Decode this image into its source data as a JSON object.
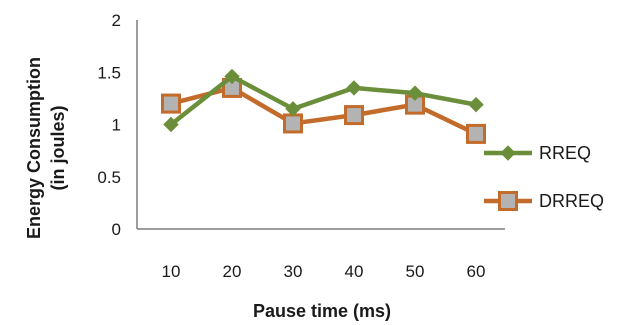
{
  "chart_data": {
    "type": "line",
    "xlabel": "Pause time (ms)",
    "ylabel": [
      "Energy Consumption",
      "(in joules)"
    ],
    "x": [
      10,
      20,
      30,
      40,
      50,
      60
    ],
    "xticks": [
      "10",
      "20",
      "30",
      "40",
      "50",
      "60"
    ],
    "yticks": [
      "0",
      "0.5",
      "1",
      "1.5",
      "2"
    ],
    "ylim": [
      0,
      2
    ],
    "grid": false,
    "legend_position": "right",
    "series": [
      {
        "name": "RREQ",
        "values": [
          1.0,
          1.46,
          1.15,
          1.35,
          1.3,
          1.19
        ],
        "color": "#6b8e3a",
        "marker": "diamond"
      },
      {
        "name": "DRREQ",
        "values": [
          1.2,
          1.35,
          1.01,
          1.09,
          1.19,
          0.91
        ],
        "color": "#c36b2a",
        "marker_fill": "#b3b3b3",
        "marker": "square"
      }
    ]
  }
}
